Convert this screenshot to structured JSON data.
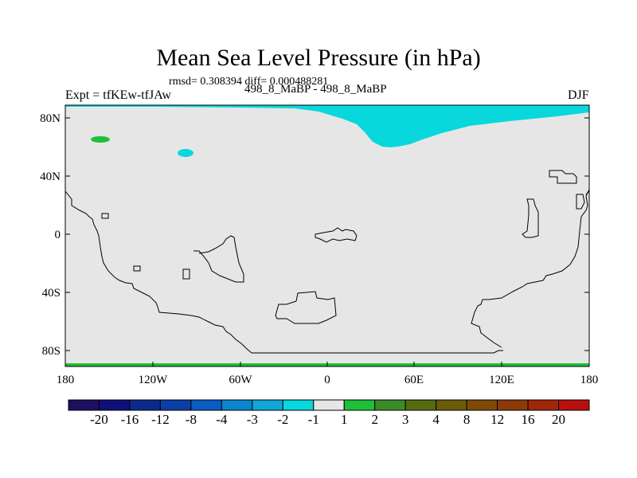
{
  "title": "Mean Sea Level Pressure (in hPa)",
  "stats": "rmsd= 0.308394 diff= 0.000488281",
  "experiment": "Expt = tfKEw-tfJAw",
  "case": "498_8_MaBP - 498_8_MaBP",
  "season": "DJF",
  "map": {
    "background_color": "#e6e6e6",
    "lon_range": [
      -180,
      180
    ],
    "lat_range": [
      -90,
      90
    ],
    "lat_tick_labels": [
      "80N",
      "40N",
      "0",
      "40S",
      "80S"
    ],
    "lon_tick_labels": [
      "180",
      "120W",
      "60W",
      "0",
      "60E",
      "120E",
      "180"
    ]
  },
  "colorbar": {
    "labels": [
      "-20",
      "-16",
      "-12",
      "-8",
      "-4",
      "-3",
      "-2",
      "-1",
      "1",
      "2",
      "3",
      "4",
      "8",
      "12",
      "16",
      "20"
    ],
    "colors": [
      "#1e0f5e",
      "#0f0f7a",
      "#0a2b8c",
      "#0a3fa6",
      "#0a5cc2",
      "#0a86cc",
      "#12a6d6",
      "#08d8dc",
      "#e6e6e6",
      "#1fbf3a",
      "#3a8c28",
      "#556b12",
      "#6b5a0a",
      "#7d4a08",
      "#8c3a0a",
      "#a02808",
      "#b81010"
    ]
  }
}
